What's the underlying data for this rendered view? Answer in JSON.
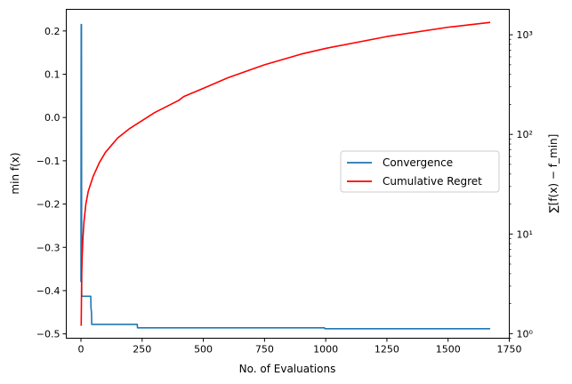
{
  "chart_data": {
    "type": "line",
    "xlabel": "No. of Evaluations",
    "ylabel_left": "min f(x)",
    "ylabel_right": "∑[f(x) − f_min]",
    "xlim": [
      -60,
      1750
    ],
    "ylim_left": [
      -0.51,
      0.25
    ],
    "ylim_right_log": [
      0.9,
      1800
    ],
    "right_axis_scale": "log",
    "grid": false,
    "legend_position": "center-right",
    "x_ticks": [
      0,
      250,
      500,
      750,
      1000,
      1250,
      1500,
      1750
    ],
    "x_tick_labels": [
      "0",
      "250",
      "500",
      "750",
      "1000",
      "1250",
      "1500",
      "1750"
    ],
    "y_left_ticks": [
      0.2,
      0.1,
      0.0,
      -0.1,
      -0.2,
      -0.3,
      -0.4,
      -0.5
    ],
    "y_left_tick_labels": [
      "0.2",
      "0.1",
      "0.0",
      "−0.1",
      "−0.2",
      "−0.3",
      "−0.4",
      "−0.5"
    ],
    "y_right_ticks": [
      1,
      10,
      100,
      1000
    ],
    "y_right_tick_labels": [
      "10⁰",
      "10¹",
      "10²",
      "10³"
    ],
    "series": [
      {
        "name": "Convergence",
        "color": "#1f77b4",
        "axis": "left",
        "x": [
          0,
          1,
          2,
          3,
          4,
          40,
          41,
          43,
          44,
          230,
          231,
          995,
          996,
          1672
        ],
        "y": [
          -0.38,
          0.215,
          0.215,
          -0.41,
          -0.413,
          -0.413,
          -0.44,
          -0.45,
          -0.478,
          -0.478,
          -0.486,
          -0.486,
          -0.488,
          -0.488
        ]
      },
      {
        "name": "Cumulative Regret",
        "color": "#ff0000",
        "axis": "right",
        "x": [
          1,
          3,
          5,
          8,
          12,
          20,
          30,
          50,
          75,
          100,
          150,
          200,
          300,
          400,
          420,
          500,
          600,
          750,
          900,
          1000,
          1250,
          1500,
          1672
        ],
        "y": [
          1.2,
          4,
          6,
          9,
          13,
          20,
          27,
          38,
          52,
          66,
          92,
          115,
          165,
          220,
          240,
          290,
          370,
          500,
          640,
          730,
          960,
          1190,
          1330
        ]
      }
    ]
  }
}
